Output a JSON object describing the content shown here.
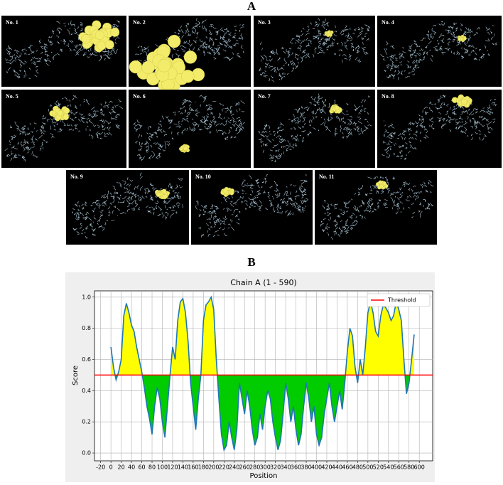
{
  "panel_a": {
    "label": "A",
    "panels": [
      "No. 1",
      "No. 2",
      "No. 3",
      "No. 4",
      "No. 5",
      "No. 6",
      "No. 7",
      "No. 8",
      "No. 9",
      "No. 10",
      "No. 11"
    ]
  },
  "panel_b_label": "B",
  "chart_data": {
    "type": "line",
    "title": "Chain A (1 - 590)",
    "x_label": "Position",
    "y_label": "Score",
    "x": [
      0,
      5,
      10,
      15,
      20,
      25,
      30,
      35,
      40,
      45,
      50,
      55,
      60,
      65,
      70,
      75,
      80,
      85,
      90,
      95,
      100,
      105,
      110,
      115,
      120,
      125,
      130,
      135,
      140,
      145,
      150,
      155,
      160,
      165,
      170,
      175,
      180,
      185,
      190,
      195,
      200,
      205,
      210,
      215,
      220,
      225,
      230,
      235,
      240,
      245,
      250,
      255,
      260,
      265,
      270,
      275,
      280,
      285,
      290,
      295,
      300,
      305,
      310,
      315,
      320,
      325,
      330,
      335,
      340,
      345,
      350,
      355,
      360,
      365,
      370,
      375,
      380,
      385,
      390,
      395,
      400,
      405,
      410,
      415,
      420,
      425,
      430,
      435,
      440,
      445,
      450,
      455,
      460,
      465,
      470,
      475,
      480,
      485,
      490,
      495,
      500,
      505,
      510,
      515,
      520,
      525,
      530,
      535,
      540,
      545,
      550,
      555,
      560,
      565,
      570,
      575,
      580,
      585,
      590
    ],
    "series": [
      {
        "color": "#1f77b4",
        "values": [
          0.68,
          0.55,
          0.47,
          0.52,
          0.6,
          0.88,
          0.96,
          0.9,
          0.82,
          0.78,
          0.68,
          0.6,
          0.52,
          0.42,
          0.3,
          0.22,
          0.12,
          0.3,
          0.42,
          0.35,
          0.2,
          0.1,
          0.3,
          0.5,
          0.68,
          0.6,
          0.85,
          0.97,
          0.99,
          0.9,
          0.72,
          0.45,
          0.3,
          0.15,
          0.35,
          0.5,
          0.85,
          0.95,
          0.97,
          1.0,
          0.92,
          0.6,
          0.35,
          0.12,
          0.02,
          0.05,
          0.2,
          0.1,
          0.02,
          0.15,
          0.45,
          0.35,
          0.25,
          0.4,
          0.3,
          0.15,
          0.05,
          0.1,
          0.25,
          0.15,
          0.3,
          0.4,
          0.35,
          0.2,
          0.1,
          0.02,
          0.08,
          0.25,
          0.45,
          0.35,
          0.2,
          0.3,
          0.15,
          0.05,
          0.12,
          0.3,
          0.45,
          0.35,
          0.2,
          0.3,
          0.12,
          0.05,
          0.1,
          0.25,
          0.35,
          0.45,
          0.3,
          0.2,
          0.3,
          0.4,
          0.28,
          0.45,
          0.65,
          0.8,
          0.75,
          0.55,
          0.45,
          0.6,
          0.5,
          0.68,
          0.9,
          0.97,
          0.9,
          0.78,
          0.75,
          0.88,
          0.95,
          0.93,
          0.9,
          0.85,
          0.88,
          0.97,
          0.92,
          0.85,
          0.6,
          0.38,
          0.45,
          0.6,
          0.76
        ]
      }
    ],
    "threshold": {
      "name": "Threshold",
      "value": 0.5,
      "color": "#ff0000"
    },
    "fill_above": "#ffff00",
    "fill_below": "#00cc00",
    "xlim": [
      -32,
      626
    ],
    "ylim": [
      -0.05,
      1.04
    ],
    "xticks": [
      -20,
      0,
      20,
      40,
      60,
      80,
      100,
      120,
      140,
      160,
      180,
      200,
      220,
      240,
      260,
      280,
      300,
      320,
      340,
      360,
      380,
      400,
      420,
      440,
      460,
      480,
      500,
      520,
      540,
      560,
      580,
      600
    ],
    "yticks": [
      {
        "value": 0,
        "label": "0.0"
      },
      0.2,
      0.4,
      0.6,
      0.8,
      {
        "value": 1,
        "label": "1.0"
      }
    ],
    "grid": true,
    "legend": "upper right"
  }
}
